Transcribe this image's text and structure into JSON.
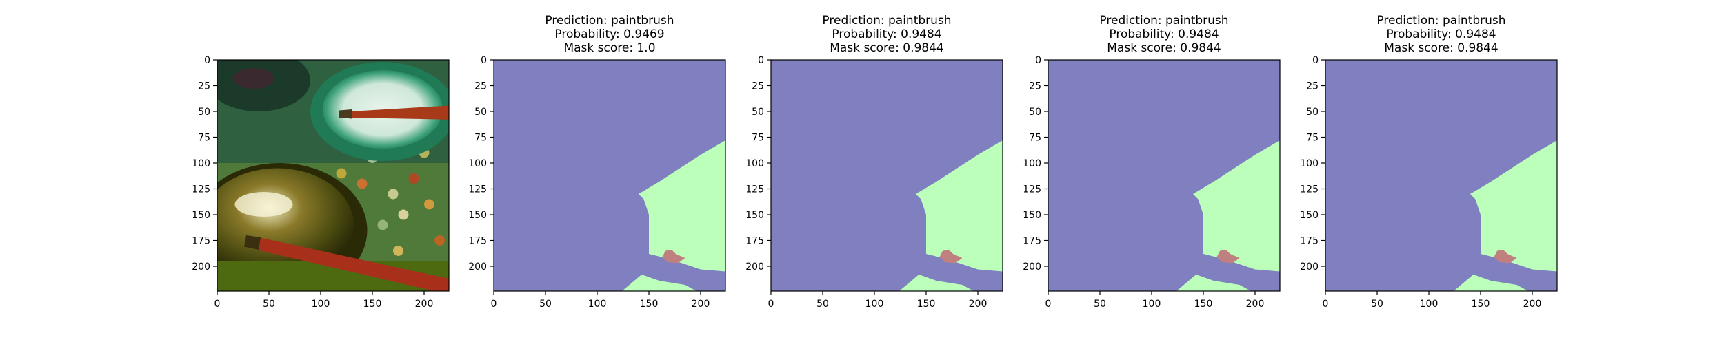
{
  "panels": [
    {
      "kind": "photo",
      "title_lines": []
    },
    {
      "kind": "mask",
      "title_lines": [
        "Prediction: paintbrush",
        "Probability: 0.9469",
        "Mask score: 1.0"
      ]
    },
    {
      "kind": "mask",
      "title_lines": [
        "Prediction: paintbrush",
        "Probability: 0.9484",
        "Mask score: 0.9844"
      ]
    },
    {
      "kind": "mask",
      "title_lines": [
        "Prediction: paintbrush",
        "Probability: 0.9484",
        "Mask score: 0.9844"
      ]
    },
    {
      "kind": "mask",
      "title_lines": [
        "Prediction: paintbrush",
        "Probability: 0.9484",
        "Mask score: 0.9844"
      ]
    }
  ],
  "axes": {
    "x_ticks": [
      0,
      50,
      100,
      150,
      200
    ],
    "y_ticks": [
      0,
      25,
      50,
      75,
      100,
      125,
      150,
      175,
      200
    ],
    "range": [
      0,
      224
    ]
  },
  "colors": {
    "mask_background": "#8080c0",
    "mask_region_main": "#bbffbb",
    "mask_region_small": "#c08080"
  }
}
